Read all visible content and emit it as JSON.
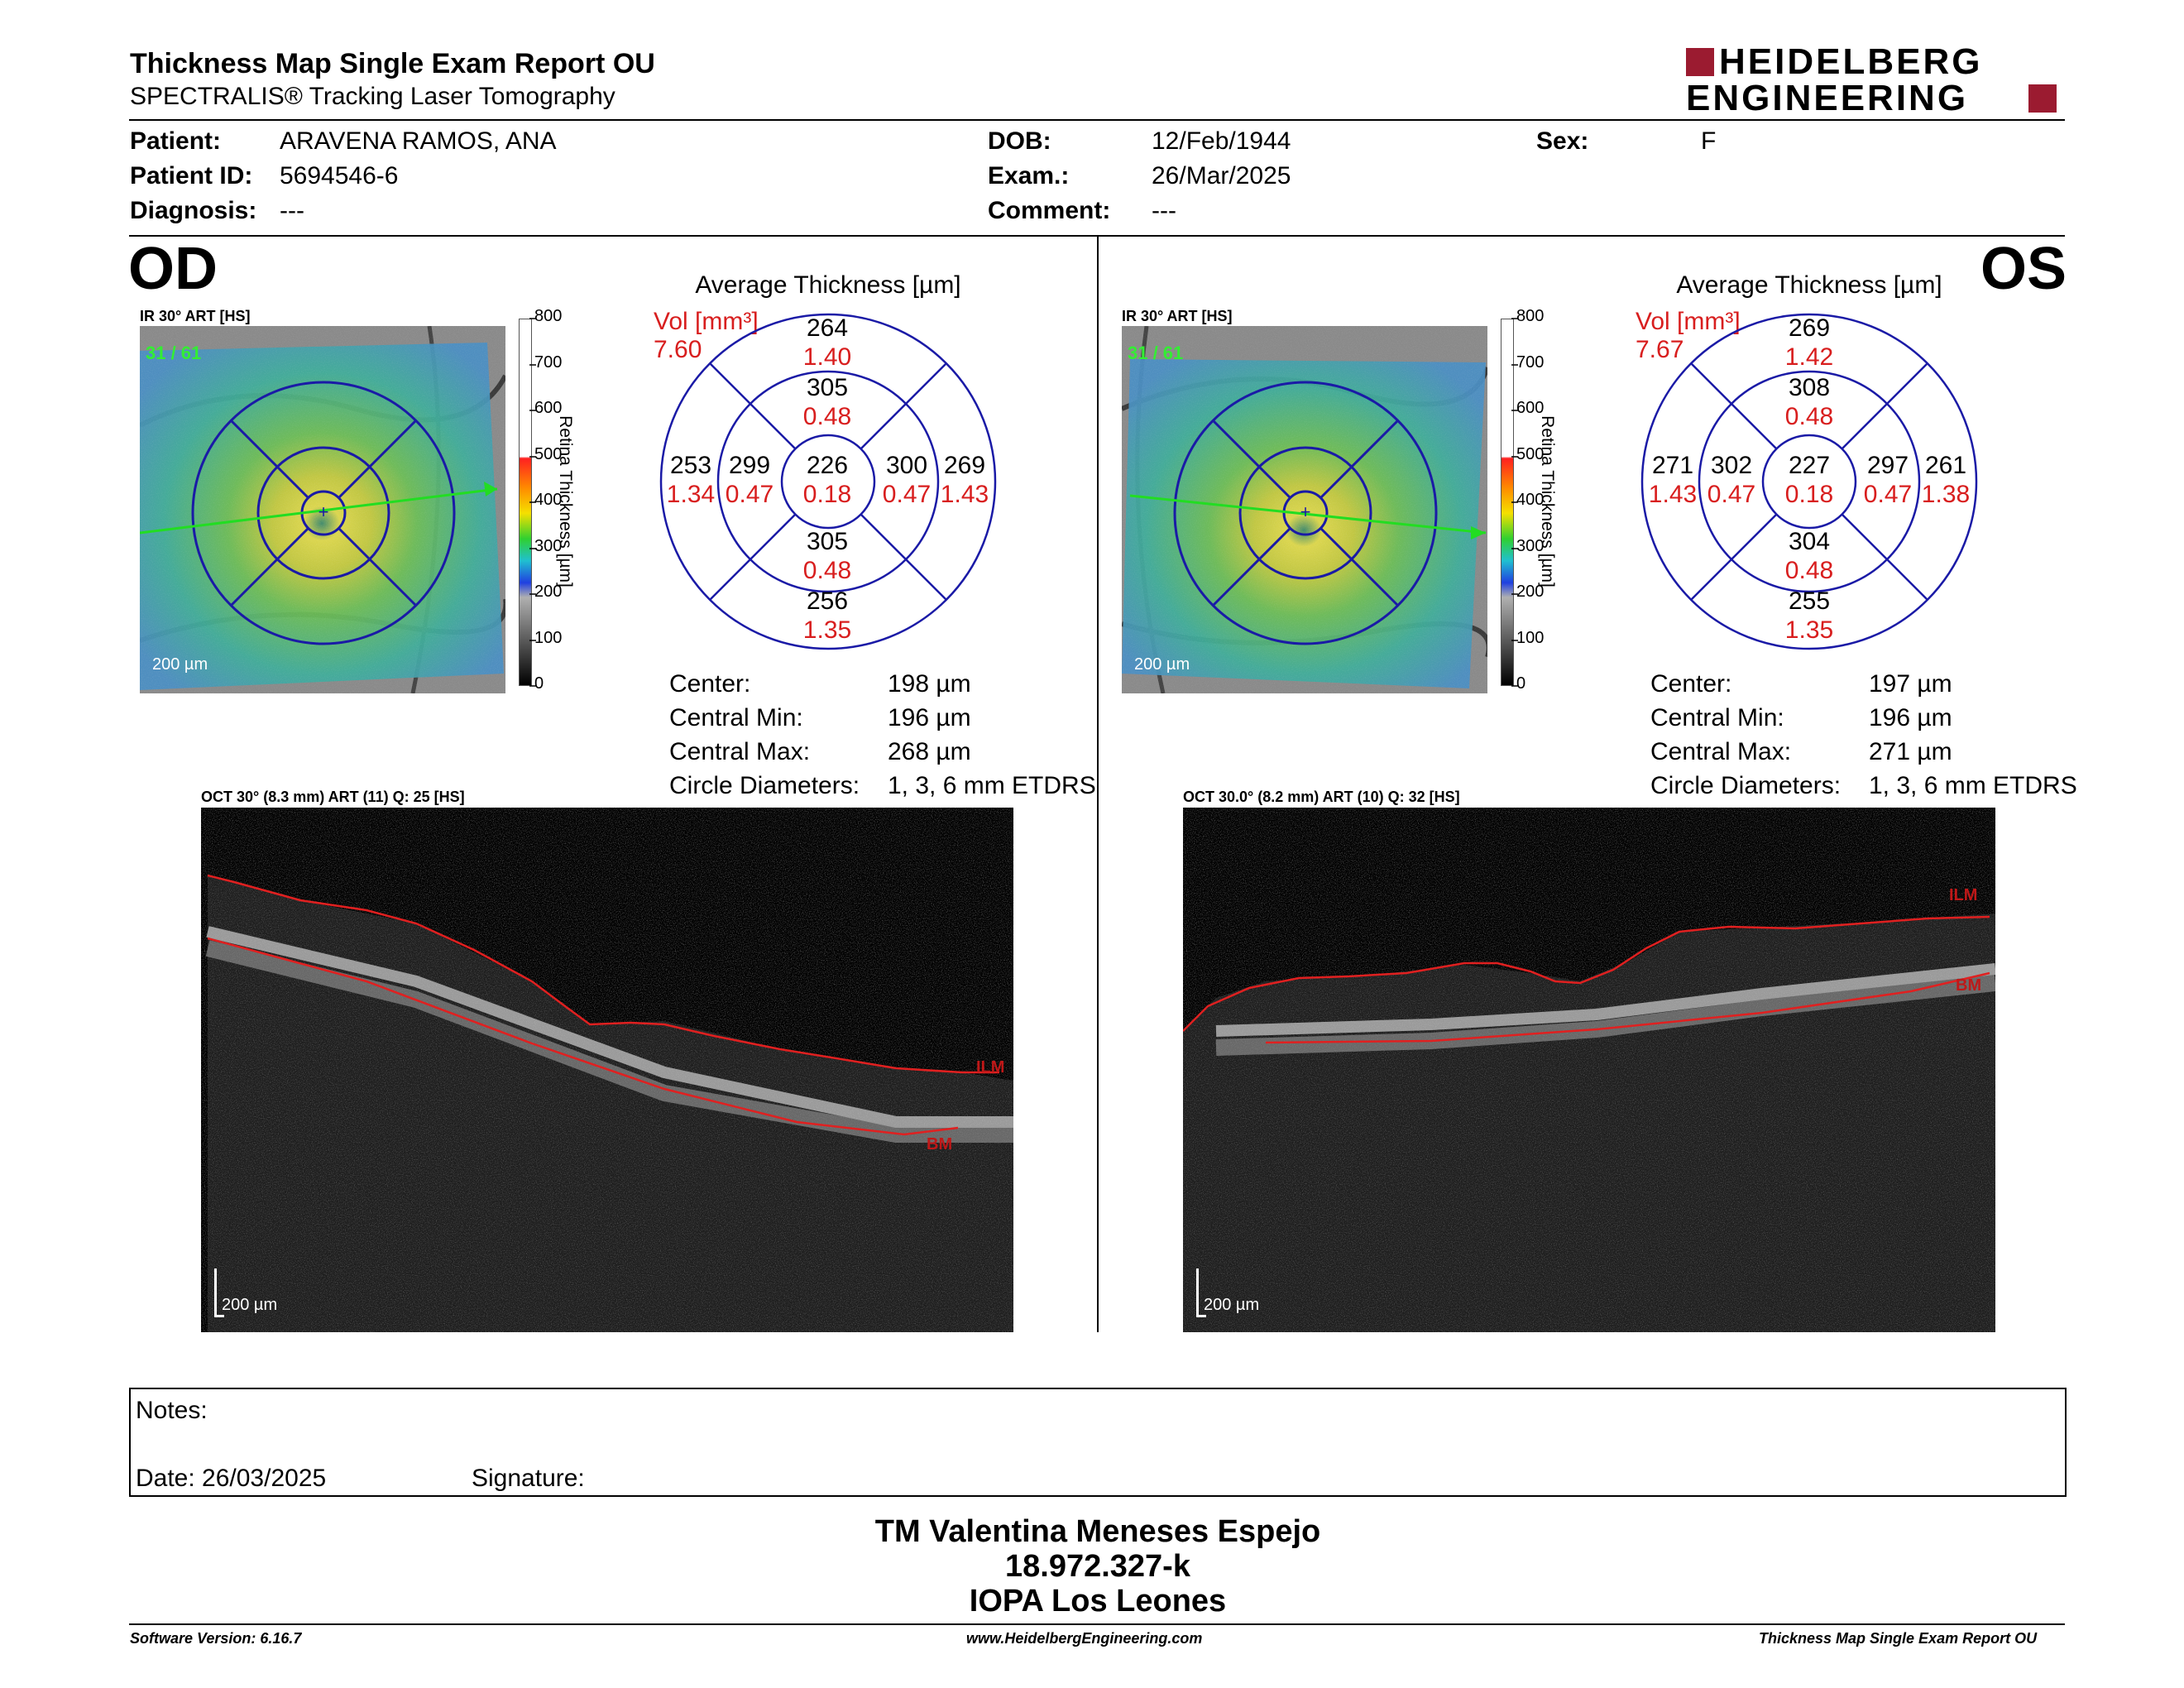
{
  "report": {
    "title": "Thickness Map Single Exam Report OU",
    "subtitle": "SPECTRALIS® Tracking Laser Tomography",
    "logo_line1": "HEIDELBERG",
    "logo_line2": "ENGINEERING"
  },
  "patient": {
    "patient_label": "Patient:",
    "patient_value": "ARAVENA RAMOS, ANA",
    "id_label": "Patient ID:",
    "id_value": "5694546-6",
    "diagnosis_label": "Diagnosis:",
    "diagnosis_value": "---",
    "dob_label": "DOB:",
    "dob_value": "12/Feb/1944",
    "exam_label": "Exam.:",
    "exam_value": "26/Mar/2025",
    "comment_label": "Comment:",
    "comment_value": "---",
    "sex_label": "Sex:",
    "sex_value": "F"
  },
  "scale": {
    "label": "Retina Thickness [µm]",
    "ticks": [
      "800",
      "700",
      "600",
      "500",
      "400",
      "300",
      "200",
      "100",
      "0"
    ]
  },
  "od": {
    "eye": "OD",
    "ir_label": "IR 30° ART [HS]",
    "ir_scale": "200 µm",
    "avg_title": "Average Thickness [µm]",
    "vol_label": "Vol [mm³]",
    "vol_value": "7.60",
    "etdrs": {
      "sup_outer": "264",
      "sup_outer_v": "1.40",
      "sup_inner": "305",
      "sup_inner_v": "0.48",
      "nas_outer": "253",
      "nas_outer_v": "1.34",
      "nas_inner": "299",
      "nas_inner_v": "0.47",
      "center": "226",
      "center_v": "0.18",
      "tmp_inner": "300",
      "tmp_inner_v": "0.47",
      "tmp_outer": "269",
      "tmp_outer_v": "1.43",
      "inf_inner": "305",
      "inf_inner_v": "0.48",
      "inf_outer": "256",
      "inf_outer_v": "1.35"
    },
    "stats": {
      "center_l": "Center:",
      "center_v": "198 µm",
      "min_l": "Central Min:",
      "min_v": "196 µm",
      "max_l": "Central Max:",
      "max_v": "268 µm",
      "circ_l": "Circle Diameters:",
      "circ_v": "1, 3, 6 mm ETDRS"
    },
    "oct_label": "OCT 30° (8.3 mm) ART (11) Q: 25 [HS]",
    "oct_scale": "200 µm",
    "ilm": "ILM",
    "bm": "BM"
  },
  "os": {
    "eye": "OS",
    "ir_label": "IR 30° ART [HS]",
    "ir_scale": "200 µm",
    "avg_title": "Average Thickness [µm]",
    "vol_label": "Vol [mm³]",
    "vol_value": "7.67",
    "etdrs": {
      "sup_outer": "269",
      "sup_outer_v": "1.42",
      "sup_inner": "308",
      "sup_inner_v": "0.48",
      "nas_outer": "271",
      "nas_outer_v": "1.43",
      "nas_inner": "302",
      "nas_inner_v": "0.47",
      "center": "227",
      "center_v": "0.18",
      "tmp_inner": "297",
      "tmp_inner_v": "0.47",
      "tmp_outer": "261",
      "tmp_outer_v": "1.38",
      "inf_inner": "304",
      "inf_inner_v": "0.48",
      "inf_outer": "255",
      "inf_outer_v": "1.35"
    },
    "stats": {
      "center_l": "Center:",
      "center_v": "197 µm",
      "min_l": "Central Min:",
      "min_v": "196 µm",
      "max_l": "Central Max:",
      "max_v": "271 µm",
      "circ_l": "Circle Diameters:",
      "circ_v": "1, 3, 6 mm ETDRS"
    },
    "oct_label": "OCT 30.0° (8.2 mm) ART (10) Q: 32 [HS]",
    "oct_scale": "200 µm",
    "ilm": "ILM",
    "bm": "BM"
  },
  "notes": {
    "notes_label": "Notes:",
    "date_label": "Date: 26/03/2025",
    "signature_label": "Signature:"
  },
  "signature": {
    "line1": "TM Valentina Meneses Espejo",
    "line2": "18.972.327-k",
    "line3": "IOPA Los Leones"
  },
  "footer": {
    "software": "Software Version: 6.16.7",
    "website": "www.HeidelbergEngineering.com",
    "report": "Thickness Map Single Exam Report OU"
  },
  "colors": {
    "accent_red": "#9b1b30",
    "value_red": "#d81e1e",
    "etdrs_blue": "#1a1aa6"
  }
}
